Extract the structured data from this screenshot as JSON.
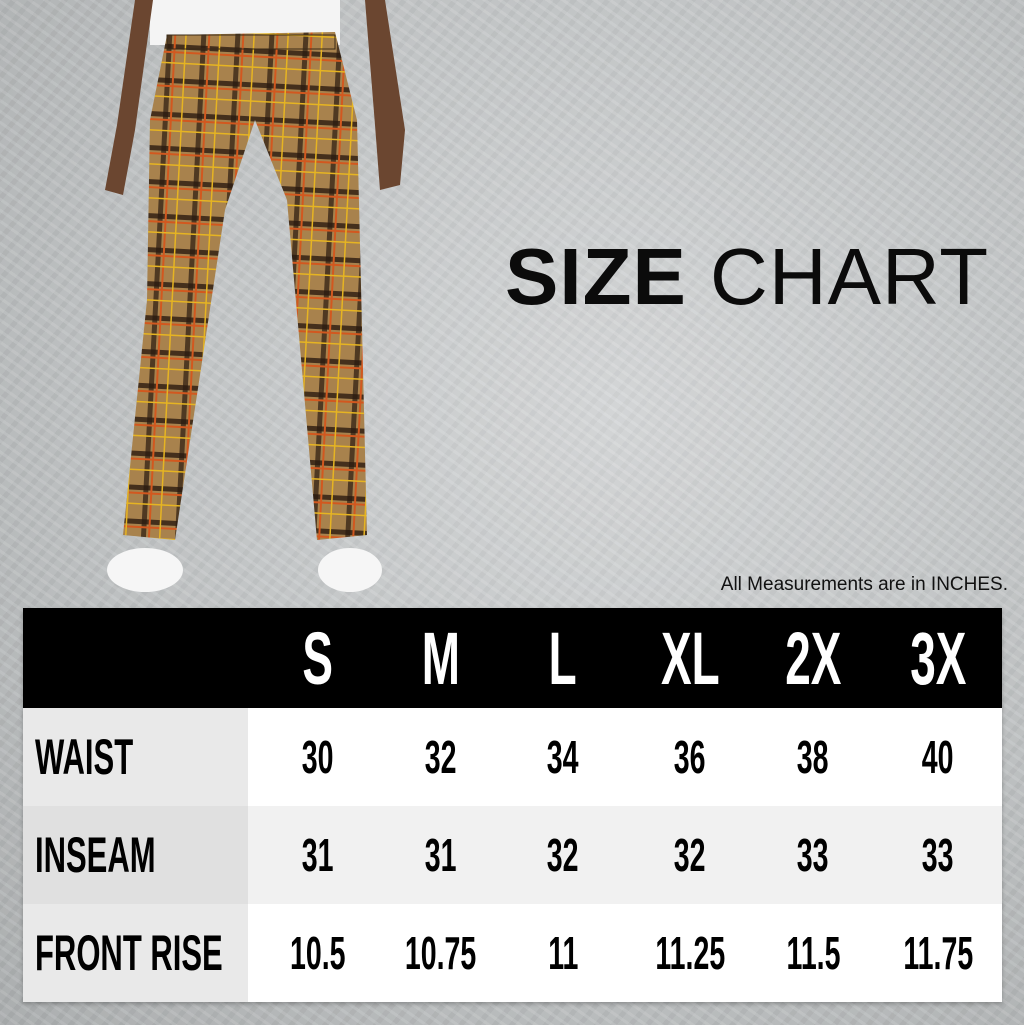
{
  "title": {
    "bold": "SIZE",
    "light": "CHART"
  },
  "note": "All Measurements are in INCHES.",
  "table": {
    "headers": [
      "S",
      "M",
      "L",
      "XL",
      "2X",
      "3X"
    ],
    "rows": [
      {
        "label": "WAIST",
        "values": [
          "30",
          "32",
          "34",
          "36",
          "38",
          "40"
        ]
      },
      {
        "label": "INSEAM",
        "values": [
          "31",
          "31",
          "32",
          "32",
          "33",
          "33"
        ]
      },
      {
        "label": "FRONT RISE",
        "values": [
          "10.5",
          "10.75",
          "11",
          "11.25",
          "11.5",
          "11.75"
        ]
      }
    ]
  },
  "colors": {
    "header_bg": "#000000",
    "header_text": "#ffffff",
    "plaid_base": "#a8824d",
    "plaid_line": "#e6b422",
    "plaid_orange": "#d2581f"
  }
}
